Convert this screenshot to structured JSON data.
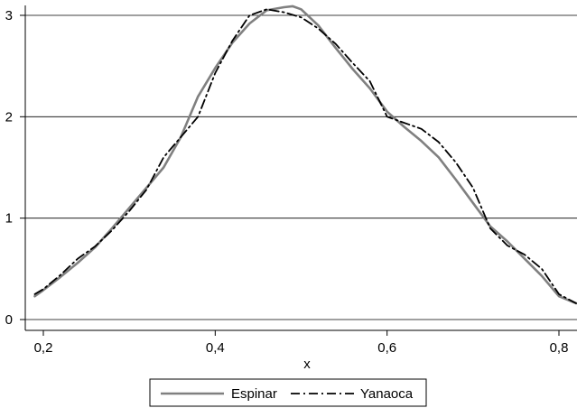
{
  "chart_data": {
    "type": "line",
    "title": "",
    "xlabel": "x",
    "ylabel": "",
    "xlim": [
      0.18,
      0.82
    ],
    "ylim": [
      0,
      3.1
    ],
    "x_ticks": [
      0.2,
      0.4,
      0.6,
      0.8
    ],
    "x_tick_labels": [
      "0,2",
      "0,4",
      "0,6",
      "0,8"
    ],
    "y_ticks": [
      0,
      1,
      2,
      3
    ],
    "y_tick_labels": [
      "0",
      "1",
      "2",
      "3"
    ],
    "grid": "horizontal",
    "legend_position": "bottom",
    "series": [
      {
        "name": "Espinar",
        "color": "#808080",
        "dash": "solid",
        "x": [
          0.19,
          0.2,
          0.22,
          0.24,
          0.26,
          0.28,
          0.3,
          0.32,
          0.34,
          0.36,
          0.38,
          0.4,
          0.42,
          0.44,
          0.46,
          0.48,
          0.49,
          0.5,
          0.52,
          0.54,
          0.56,
          0.58,
          0.6,
          0.62,
          0.64,
          0.66,
          0.68,
          0.7,
          0.72,
          0.74,
          0.76,
          0.78,
          0.8,
          0.82
        ],
        "values": [
          0.23,
          0.29,
          0.42,
          0.56,
          0.71,
          0.9,
          1.1,
          1.3,
          1.5,
          1.8,
          2.2,
          2.48,
          2.73,
          2.92,
          3.05,
          3.08,
          3.09,
          3.06,
          2.9,
          2.68,
          2.47,
          2.28,
          2.05,
          1.9,
          1.76,
          1.6,
          1.38,
          1.15,
          0.92,
          0.77,
          0.6,
          0.43,
          0.23,
          0.16
        ]
      },
      {
        "name": "Yanaoca",
        "color": "#000000",
        "dash": "dash-dot",
        "x": [
          0.19,
          0.2,
          0.22,
          0.24,
          0.26,
          0.28,
          0.3,
          0.32,
          0.34,
          0.36,
          0.38,
          0.4,
          0.42,
          0.44,
          0.46,
          0.48,
          0.5,
          0.52,
          0.54,
          0.56,
          0.58,
          0.6,
          0.62,
          0.64,
          0.66,
          0.68,
          0.7,
          0.72,
          0.74,
          0.76,
          0.78,
          0.8,
          0.82
        ],
        "values": [
          0.25,
          0.3,
          0.44,
          0.6,
          0.72,
          0.88,
          1.07,
          1.28,
          1.6,
          1.8,
          2.0,
          2.43,
          2.75,
          3.0,
          3.06,
          3.03,
          2.98,
          2.87,
          2.72,
          2.53,
          2.35,
          2.0,
          1.94,
          1.88,
          1.75,
          1.55,
          1.3,
          0.9,
          0.73,
          0.64,
          0.5,
          0.25,
          0.16
        ]
      }
    ]
  }
}
